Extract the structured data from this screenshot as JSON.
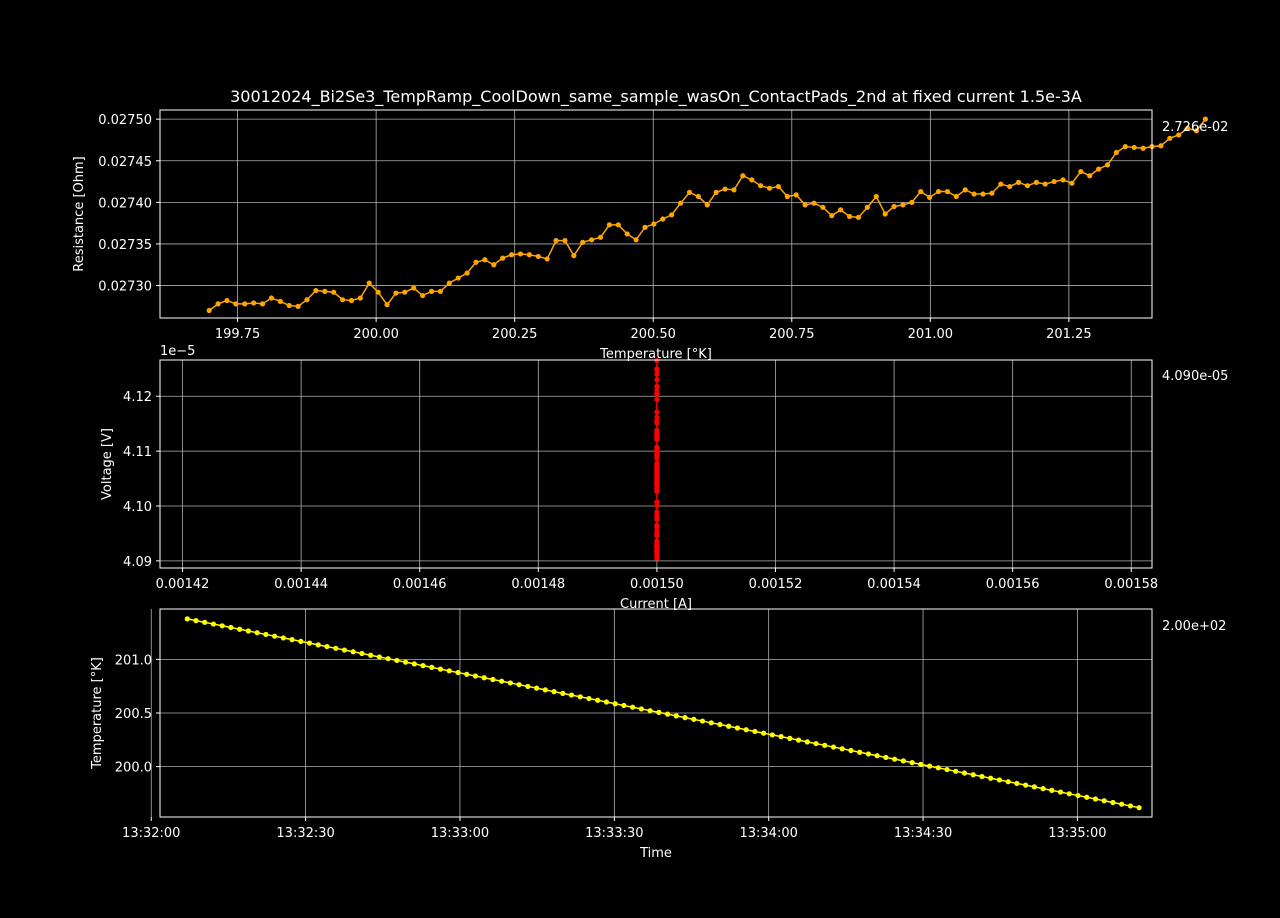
{
  "figure": {
    "title": "30012024_Bi2Se3_TempRamp_CoolDown_same_sample_wasOn_ContactPads_2nd at fixed current 1.5e-3A",
    "background": "#000000",
    "foreground": "#ffffff"
  },
  "chart_data": [
    {
      "type": "line",
      "xlabel": "Temperature [°K]",
      "ylabel": "Resistance [Ohm]",
      "readout": "2.726e-02",
      "xlim": [
        199.61,
        201.4
      ],
      "ylim": [
        0.027261,
        0.027511
      ],
      "xticks": [
        199.75,
        200.0,
        200.25,
        200.5,
        200.75,
        201.0,
        201.25
      ],
      "xtick_labels": [
        "199.75",
        "200.00",
        "200.25",
        "200.50",
        "200.75",
        "201.00",
        "201.25"
      ],
      "yticks": [
        0.0273,
        0.02735,
        0.0274,
        0.02745,
        0.0275
      ],
      "ytick_labels": [
        "0.02730",
        "0.02735",
        "0.02740",
        "0.02745",
        "0.02750"
      ],
      "grid": true,
      "series": [
        {
          "color": "#ffa500",
          "marker": "circle",
          "x_start": 199.6987,
          "x_step": 0.01605,
          "y": [
            0.02727,
            0.027278,
            0.027282,
            0.027278,
            0.027278,
            0.027279,
            0.027278,
            0.027285,
            0.027281,
            0.027276,
            0.027275,
            0.027283,
            0.027294,
            0.027293,
            0.027292,
            0.027283,
            0.027282,
            0.027285,
            0.027303,
            0.027292,
            0.027277,
            0.027291,
            0.027292,
            0.027297,
            0.027288,
            0.027293,
            0.027293,
            0.027303,
            0.027309,
            0.027315,
            0.027328,
            0.027331,
            0.027325,
            0.027333,
            0.027337,
            0.027338,
            0.027337,
            0.027335,
            0.027332,
            0.027354,
            0.027354,
            0.027336,
            0.027352,
            0.027355,
            0.027358,
            0.027373,
            0.027373,
            0.027362,
            0.027355,
            0.02737,
            0.027374,
            0.02738,
            0.027385,
            0.027399,
            0.027412,
            0.027407,
            0.027397,
            0.027412,
            0.027416,
            0.027415,
            0.027432,
            0.027427,
            0.02742,
            0.027417,
            0.027419,
            0.027407,
            0.027409,
            0.027397,
            0.027399,
            0.027394,
            0.027384,
            0.027391,
            0.027383,
            0.027382,
            0.027394,
            0.027407,
            0.027386,
            0.027395,
            0.027397,
            0.0274,
            0.027413,
            0.027406,
            0.027413,
            0.027413,
            0.027407,
            0.027415,
            0.02741,
            0.02741,
            0.027411,
            0.027422,
            0.027419,
            0.027424,
            0.02742,
            0.027424,
            0.027422,
            0.027425,
            0.027427,
            0.027423,
            0.027437,
            0.027432,
            0.02744,
            0.027445,
            0.02746,
            0.027467,
            0.027466,
            0.027465,
            0.027467,
            0.027468,
            0.027477,
            0.027481,
            0.027489,
            0.027486,
            0.0275
          ]
        }
      ]
    },
    {
      "type": "scatter",
      "xlabel": "Current [A]",
      "ylabel": "Voltage [V]",
      "readout": "4.090e-05",
      "scale_label": "1e−5",
      "xlim": [
        0.0014162,
        0.0015835
      ],
      "ylim": [
        4.0887,
        4.1266
      ],
      "xticks": [
        0.00142,
        0.00144,
        0.00146,
        0.00148,
        0.0015,
        0.00152,
        0.00154,
        0.00156,
        0.00158
      ],
      "xtick_labels": [
        "0.00142",
        "0.00144",
        "0.00146",
        "0.00148",
        "0.00150",
        "0.00152",
        "0.00154",
        "0.00156",
        "0.00158"
      ],
      "yticks": [
        4.09,
        4.1,
        4.11,
        4.12
      ],
      "ytick_labels": [
        "4.09",
        "4.10",
        "4.11",
        "4.12"
      ],
      "grid": true,
      "series": [
        {
          "color": "#ff0000",
          "marker": "circle",
          "x_constant": 0.0015,
          "y": [
            4.0905,
            4.0908,
            4.0912,
            4.0916,
            4.0918,
            4.0917,
            4.0917,
            4.0918,
            4.0917,
            4.0928,
            4.0924,
            4.0917,
            4.0919,
            4.0924,
            4.0928,
            4.0925,
            4.0929,
            4.0933,
            4.0936,
            4.0949,
            4.0947,
            4.0927,
            4.0946,
            4.0954,
            4.0961,
            4.0979,
            4.0975,
            4.0965,
            4.0963,
            4.0983,
            4.0989,
            4.1001,
            4.1007,
            4.1027,
            4.1041,
            4.1036,
            4.1026,
            4.105,
            4.1058,
            4.1059,
            4.1078,
            4.1075,
            4.107,
            4.1063,
            4.1067,
            4.1054,
            4.106,
            4.1043,
            4.1047,
            4.1043,
            4.1031,
            4.1043,
            4.1037,
            4.104,
            4.1056,
            4.1073,
            4.1045,
            4.1061,
            4.1066,
            4.1075,
            4.1092,
            4.1087,
            4.1095,
            4.1097,
            4.1093,
            4.1107,
            4.11,
            4.1103,
            4.1107,
            4.1125,
            4.1121,
            4.1129,
            4.1124,
            4.113,
            4.1127,
            4.1133,
            4.1138,
            4.1135,
            4.1155,
            4.1151,
            4.1162,
            4.1171,
            4.1194,
            4.1205,
            4.1204,
            4.1205,
            4.1211,
            4.1218,
            4.123,
            4.124,
            4.125,
            4.1248,
            4.1265
          ]
        }
      ]
    },
    {
      "type": "line",
      "xlabel": "Time",
      "ylabel": "Temperature [°K]",
      "readout": "2.00e+02",
      "xlim": [
        "13:32:01.7",
        "13:35:14.5"
      ],
      "ylim": [
        199.53,
        201.47
      ],
      "xticks": [
        "13:32:00",
        "13:32:30",
        "13:33:00",
        "13:33:30",
        "13:34:00",
        "13:34:30",
        "13:35:00"
      ],
      "xtick_labels": [
        "13:32:00",
        "13:32:30",
        "13:33:00",
        "13:33:30",
        "13:34:00",
        "13:34:30",
        "13:35:00"
      ],
      "yticks": [
        200.0,
        200.5,
        201.0
      ],
      "ytick_labels": [
        "200.0",
        "200.5",
        "201.0"
      ],
      "grid": true,
      "series": [
        {
          "color": "#ffff00",
          "marker": "circle",
          "t_start": "13:32:07",
          "t_end": "13:35:12",
          "t_step_s": 1.7,
          "y_start": 201.378,
          "y_end": 199.617
        }
      ]
    }
  ]
}
